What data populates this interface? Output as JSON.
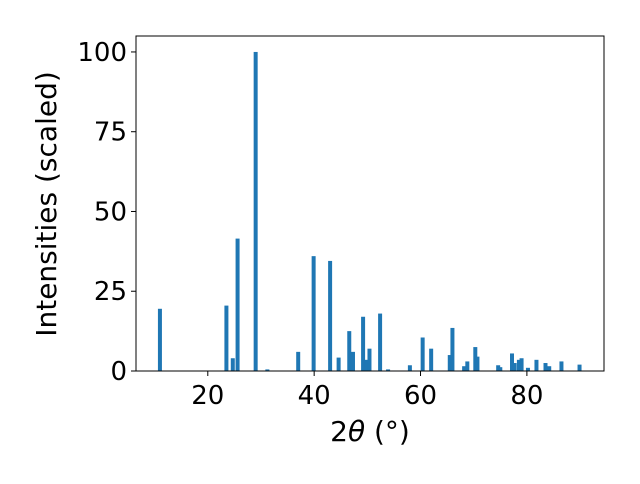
{
  "chart_data": {
    "type": "bar",
    "title": "",
    "xlabel": "2θ (°)",
    "ylabel": "Intensities (scaled)",
    "xlim": [
      6.5,
      94.5
    ],
    "ylim": [
      0,
      105
    ],
    "xticks": [
      20,
      40,
      60,
      80
    ],
    "yticks": [
      0,
      25,
      50,
      75,
      100
    ],
    "grid": false,
    "bar_color": "#1f77b4",
    "series": [
      {
        "x": [
          11.0,
          23.5,
          24.7,
          25.6,
          29.0,
          31.2,
          37.0,
          39.9,
          43.0,
          44.6,
          46.6,
          47.3,
          49.2,
          49.9,
          50.4,
          52.4,
          53.9,
          58.0,
          60.4,
          62.0,
          65.5,
          66.0,
          68.2,
          68.8,
          70.3,
          70.7,
          74.6,
          75.0,
          77.2,
          77.7,
          78.5,
          79.0,
          80.2,
          81.8,
          83.5,
          84.2,
          86.5,
          89.9
        ],
        "y": [
          19.5,
          20.5,
          4.0,
          41.5,
          100.0,
          0.5,
          6.0,
          36.0,
          34.5,
          4.2,
          12.5,
          6.0,
          17.0,
          3.5,
          7.0,
          18.0,
          0.5,
          1.8,
          10.5,
          7.0,
          5.0,
          13.5,
          1.5,
          3.0,
          7.5,
          4.5,
          1.8,
          1.2,
          5.5,
          2.5,
          3.5,
          4.0,
          1.0,
          3.5,
          2.5,
          1.5,
          3.0,
          2.0
        ]
      }
    ]
  }
}
